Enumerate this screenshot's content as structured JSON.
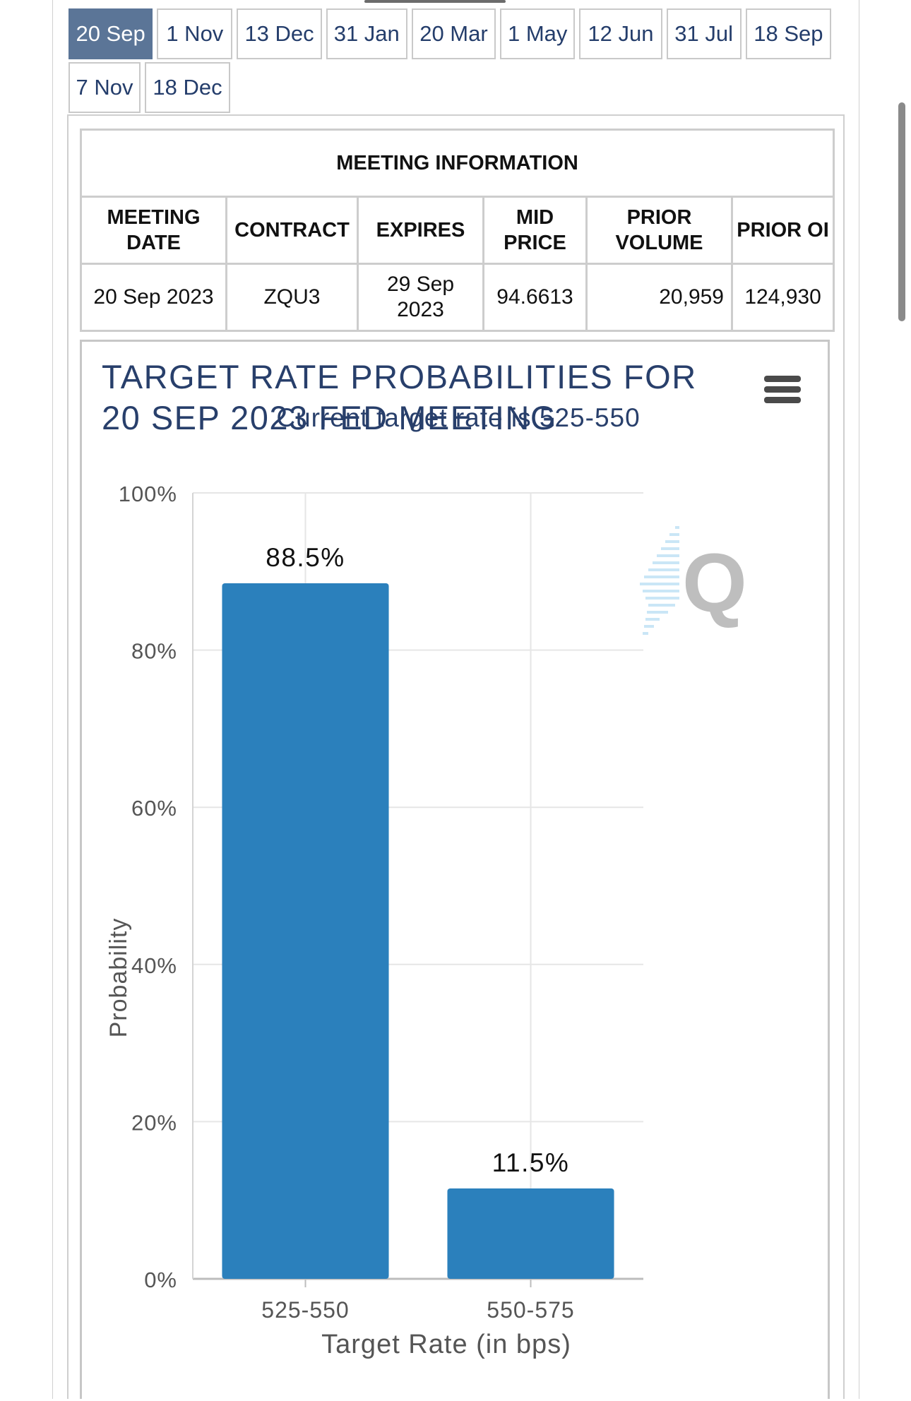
{
  "tabs": {
    "row1": [
      "20 Sep",
      "1 Nov",
      "13 Dec",
      "31 Jan",
      "20 Mar",
      "1 May",
      "12 Jun",
      "31 Jul",
      "18 Sep"
    ],
    "row2": [
      "7 Nov",
      "18 Dec"
    ],
    "active": "20 Sep"
  },
  "meeting_info": {
    "heading": "MEETING INFORMATION",
    "headers": {
      "meeting_date": "MEETING DATE",
      "contract": "CONTRACT",
      "expires": "EXPIRES",
      "mid_price": "MID PRICE",
      "prior_volume": "PRIOR VOLUME",
      "prior_oi": "PRIOR OI"
    },
    "row": {
      "meeting_date": "20 Sep 2023",
      "contract": "ZQU3",
      "expires": "29 Sep 2023",
      "mid_price": "94.6613",
      "prior_volume": "20,959",
      "prior_oi": "124,930"
    }
  },
  "chart": {
    "title_line1": "TARGET RATE PROBABILITIES FOR",
    "title_line2": "20 SEP 2023 FED MEETING",
    "subtitle": "Current target rate is 525-550",
    "menu_icon": "hamburger-menu-icon",
    "watermark_icon": "q-logo-icon",
    "colors": {
      "bar": "#2b80bc",
      "title": "#283f6b",
      "grid": "#e6e6e6",
      "axis_text": "#555555"
    }
  },
  "chart_data": {
    "type": "bar",
    "title": "TARGET RATE PROBABILITIES FOR 20 SEP 2023 FED MEETING",
    "subtitle": "Current target rate is 525-550",
    "categories": [
      "525-550",
      "550-575"
    ],
    "values": [
      88.5,
      11.5
    ],
    "data_labels": [
      "88.5%",
      "11.5%"
    ],
    "xlabel": "Target Rate (in bps)",
    "ylabel": "Probability",
    "ylim": [
      0,
      100
    ],
    "yticks": [
      0,
      20,
      40,
      60,
      80,
      100
    ],
    "ytick_labels": [
      "0%",
      "20%",
      "40%",
      "60%",
      "80%",
      "100%"
    ],
    "grid": true,
    "legend": "none"
  }
}
